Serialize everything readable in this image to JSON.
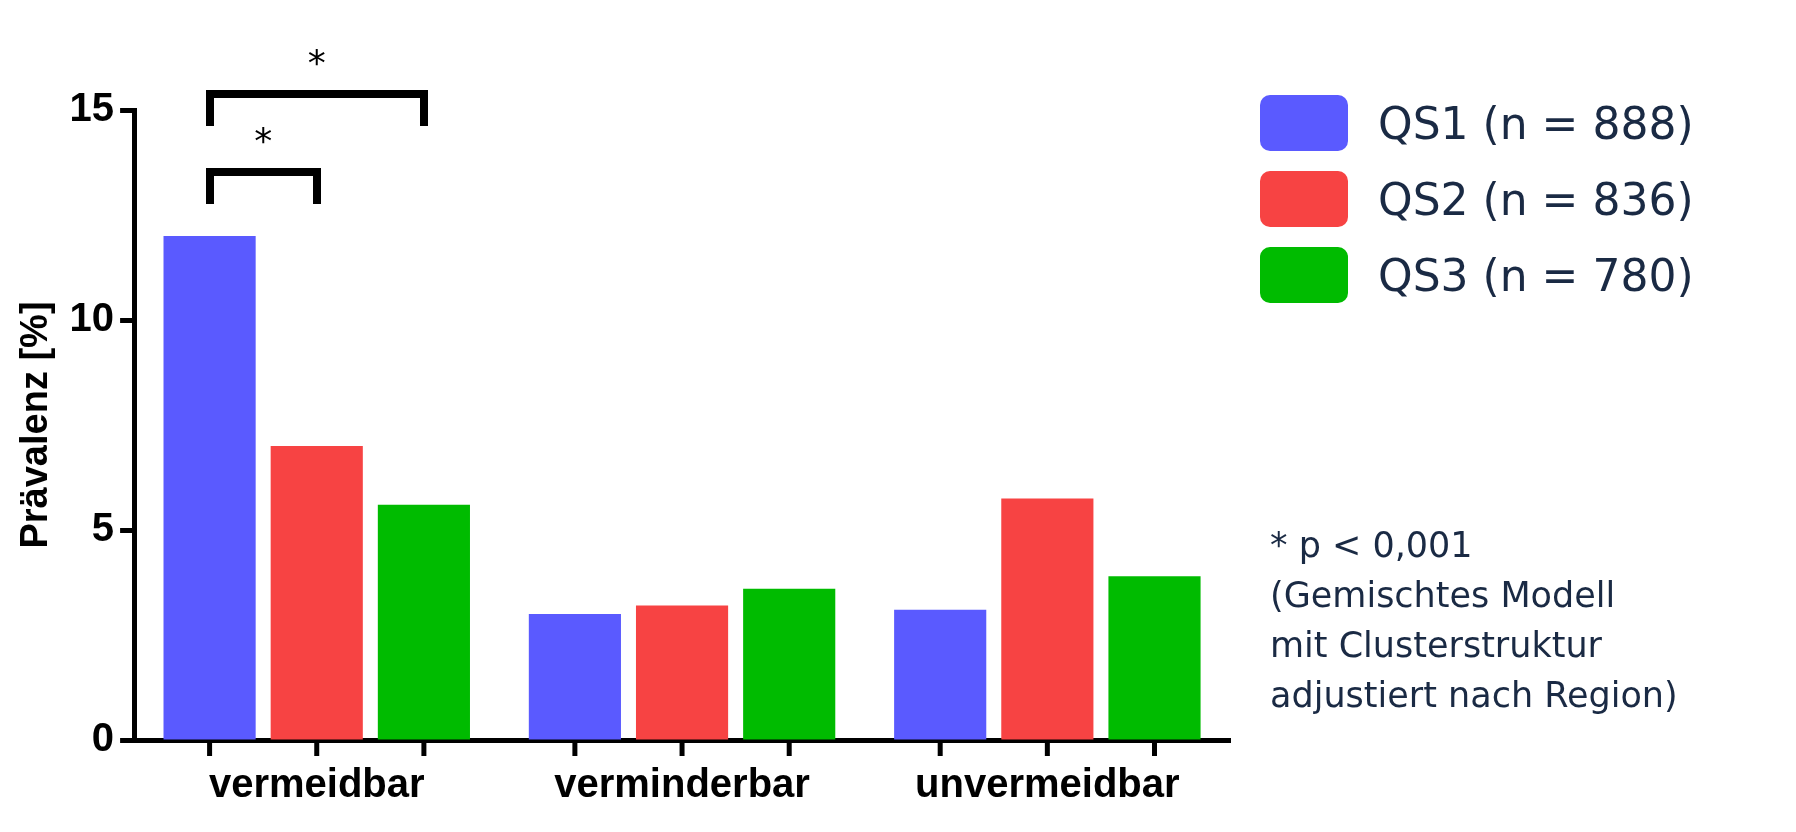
{
  "chart_data": {
    "type": "bar",
    "ylabel": "Prävalenz [%]",
    "categories": [
      "vermeidbar",
      "verminderbar",
      "unvermeidbar"
    ],
    "series": [
      {
        "name": "QS1 (n = 888)",
        "color": "#5a5aff",
        "values": [
          12.0,
          3.0,
          3.1
        ]
      },
      {
        "name": "QS2 (n = 836)",
        "color": "#f74343",
        "values": [
          7.0,
          3.2,
          5.75
        ]
      },
      {
        "name": "QS3 (n = 780)",
        "color": "#00bb00",
        "values": [
          5.6,
          3.6,
          3.9
        ]
      }
    ],
    "ylim": [
      0,
      15
    ],
    "yticks": [
      0,
      5,
      10,
      15
    ],
    "grid": false,
    "legend": "right",
    "annotations": [
      "*",
      "*",
      "* p < 0,001\n(Gemischtes Modell\nmit Clusterstruktur\nadjustiert nach Region)"
    ]
  }
}
